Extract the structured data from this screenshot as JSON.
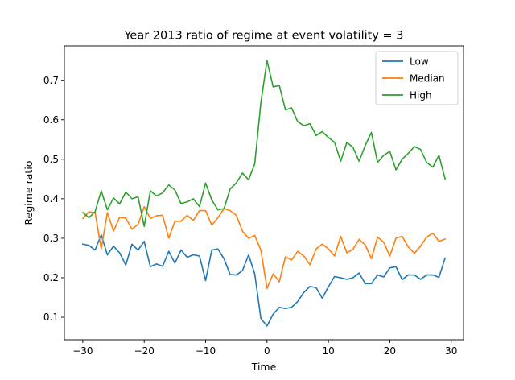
{
  "chart_data": {
    "type": "line",
    "title": "Year 2013 ratio of regime at event volatility = 3",
    "xlabel": "Time",
    "ylabel": "Regime ratio",
    "xlim": [
      -33.0,
      32.0
    ],
    "ylim": [
      0.043,
      0.787
    ],
    "xticks": [
      -30,
      -20,
      -10,
      0,
      10,
      20,
      30
    ],
    "yticks": [
      0.1,
      0.2,
      0.3,
      0.4,
      0.5,
      0.6,
      0.7
    ],
    "xtick_labels": [
      "−30",
      "−20",
      "−10",
      "0",
      "10",
      "20",
      "30"
    ],
    "ytick_labels": [
      "0.1",
      "0.2",
      "0.3",
      "0.4",
      "0.5",
      "0.6",
      "0.7"
    ],
    "grid": false,
    "legend_position": "top-right",
    "x": [
      -30,
      -29,
      -28,
      -27,
      -26,
      -25,
      -24,
      -23,
      -22,
      -21,
      -20,
      -19,
      -18,
      -17,
      -16,
      -15,
      -14,
      -13,
      -12,
      -11,
      -10,
      -9,
      -8,
      -7,
      -6,
      -5,
      -4,
      -3,
      -2,
      -1,
      0,
      1,
      2,
      3,
      4,
      5,
      6,
      7,
      8,
      9,
      10,
      11,
      12,
      13,
      14,
      15,
      16,
      17,
      18,
      19,
      20,
      21,
      22,
      23,
      24,
      25,
      26,
      27,
      28,
      29
    ],
    "series": [
      {
        "name": "Low",
        "color": "#1f77b4",
        "values": [
          0.285,
          0.282,
          0.27,
          0.309,
          0.258,
          0.28,
          0.263,
          0.232,
          0.285,
          0.27,
          0.292,
          0.228,
          0.235,
          0.229,
          0.267,
          0.237,
          0.27,
          0.252,
          0.258,
          0.255,
          0.193,
          0.27,
          0.273,
          0.248,
          0.208,
          0.207,
          0.218,
          0.258,
          0.21,
          0.097,
          0.078,
          0.108,
          0.125,
          0.122,
          0.125,
          0.14,
          0.163,
          0.178,
          0.175,
          0.148,
          0.177,
          0.203,
          0.2,
          0.196,
          0.2,
          0.212,
          0.185,
          0.185,
          0.207,
          0.202,
          0.225,
          0.228,
          0.195,
          0.207,
          0.207,
          0.196,
          0.207,
          0.207,
          0.201,
          0.25
        ]
      },
      {
        "name": "Median",
        "color": "#ff7f0e",
        "values": [
          0.35,
          0.367,
          0.365,
          0.273,
          0.365,
          0.318,
          0.353,
          0.351,
          0.323,
          0.335,
          0.38,
          0.35,
          0.357,
          0.358,
          0.3,
          0.343,
          0.343,
          0.358,
          0.345,
          0.37,
          0.37,
          0.333,
          0.352,
          0.375,
          0.37,
          0.358,
          0.318,
          0.3,
          0.307,
          0.27,
          0.173,
          0.21,
          0.19,
          0.253,
          0.245,
          0.267,
          0.255,
          0.233,
          0.273,
          0.285,
          0.273,
          0.255,
          0.305,
          0.263,
          0.272,
          0.297,
          0.283,
          0.248,
          0.303,
          0.29,
          0.255,
          0.3,
          0.305,
          0.278,
          0.262,
          0.28,
          0.303,
          0.313,
          0.292,
          0.298
        ]
      },
      {
        "name": "High",
        "color": "#2ca02c",
        "values": [
          0.365,
          0.352,
          0.367,
          0.42,
          0.372,
          0.402,
          0.387,
          0.417,
          0.4,
          0.405,
          0.33,
          0.42,
          0.407,
          0.415,
          0.435,
          0.422,
          0.388,
          0.392,
          0.4,
          0.38,
          0.44,
          0.397,
          0.372,
          0.375,
          0.425,
          0.44,
          0.465,
          0.448,
          0.488,
          0.643,
          0.75,
          0.683,
          0.687,
          0.625,
          0.63,
          0.595,
          0.585,
          0.59,
          0.56,
          0.57,
          0.555,
          0.543,
          0.495,
          0.543,
          0.53,
          0.495,
          0.535,
          0.568,
          0.492,
          0.51,
          0.52,
          0.473,
          0.5,
          0.515,
          0.532,
          0.525,
          0.492,
          0.48,
          0.51,
          0.45
        ]
      }
    ]
  }
}
